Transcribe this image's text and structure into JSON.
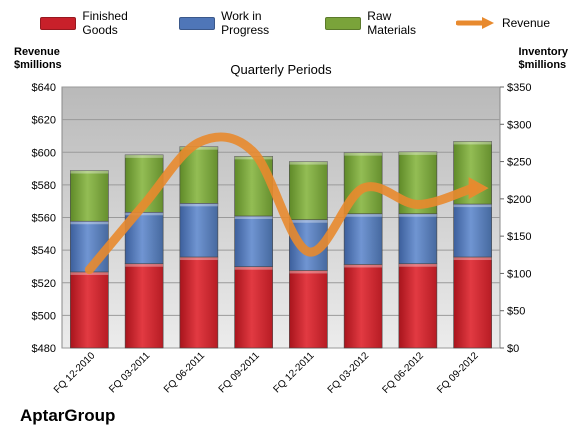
{
  "legend": {
    "items": [
      {
        "label": "Finished Goods",
        "color": "#c8202a"
      },
      {
        "label": "Work in Progress",
        "color": "#4f76b8"
      },
      {
        "label": "Raw Materials",
        "color": "#7aa33a"
      },
      {
        "label": "Revenue",
        "color": "#e88a2e"
      }
    ]
  },
  "axes": {
    "left_title_line1": "Revenue",
    "left_title_line2": "$millions",
    "right_title_line1": "Inventory",
    "right_title_line2": "$millions",
    "x_title": "Quarterly Periods"
  },
  "company": "AptarGroup",
  "chart_data": {
    "type": "bar",
    "stacked": true,
    "categories": [
      "FQ 12-2010",
      "FQ 03-2011",
      "FQ 06-2011",
      "FQ 09-2011",
      "FQ 12-2011",
      "FQ 03-2012",
      "FQ 06-2012",
      "FQ 09-2012"
    ],
    "series": [
      {
        "name": "Finished Goods",
        "axis": "right",
        "color": "#c8202a",
        "values": [
          102,
          113,
          122,
          109,
          104,
          112,
          113,
          122
        ]
      },
      {
        "name": "Work in Progress",
        "axis": "right",
        "color": "#4f76b8",
        "values": [
          68,
          69,
          72,
          68,
          68,
          68,
          67,
          71
        ]
      },
      {
        "name": "Raw Materials",
        "axis": "right",
        "color": "#7aa33a",
        "values": [
          68,
          77,
          76,
          80,
          78,
          82,
          83,
          84
        ]
      },
      {
        "name": "Revenue",
        "type": "line",
        "axis": "left",
        "color": "#e88a2e",
        "values": [
          528,
          568,
          606,
          600,
          539,
          578,
          568,
          578
        ]
      }
    ],
    "ylim_left": [
      480,
      640
    ],
    "yticks_left": [
      "$480",
      "$500",
      "$520",
      "$540",
      "$560",
      "$580",
      "$600",
      "$620",
      "$640"
    ],
    "ylim_right": [
      0,
      350
    ],
    "yticks_right": [
      "$0",
      "$50",
      "$100",
      "$150",
      "$200",
      "$250",
      "$300",
      "$350"
    ],
    "grid": true
  }
}
